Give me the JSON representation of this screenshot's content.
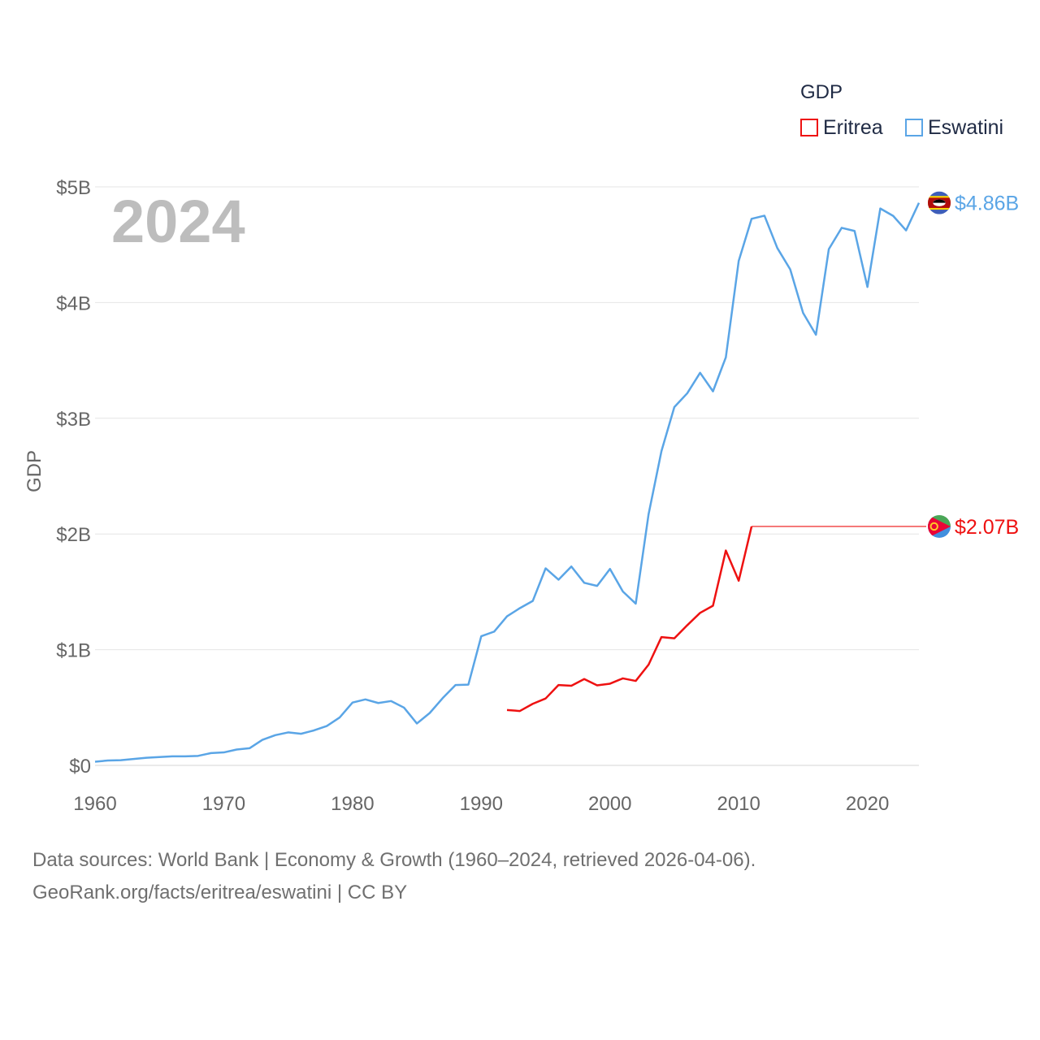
{
  "chart_data": {
    "type": "line",
    "title": "",
    "year_label": "2024",
    "xlabel": "",
    "ylabel": "GDP",
    "xlim": [
      1960,
      2024
    ],
    "ylim": [
      0,
      5
    ],
    "x_ticks": [
      1960,
      1970,
      1980,
      1990,
      2000,
      2010,
      2020
    ],
    "y_ticks": [
      {
        "value": 0,
        "label": "$0"
      },
      {
        "value": 1,
        "label": "$1B"
      },
      {
        "value": 2,
        "label": "$2B"
      },
      {
        "value": 3,
        "label": "$3B"
      },
      {
        "value": 4,
        "label": "$4B"
      },
      {
        "value": 5,
        "label": "$5B"
      }
    ],
    "legend": {
      "title": "GDP",
      "position": "top-right"
    },
    "series": [
      {
        "name": "Eritrea",
        "color": "#ee1111",
        "end_label": "$2.07B",
        "carry_forward_from": 2011,
        "points": [
          [
            1992,
            0.478
          ],
          [
            1993,
            0.47
          ],
          [
            1994,
            0.532
          ],
          [
            1995,
            0.578
          ],
          [
            1996,
            0.694
          ],
          [
            1997,
            0.688
          ],
          [
            1998,
            0.746
          ],
          [
            1999,
            0.692
          ],
          [
            2000,
            0.706
          ],
          [
            2001,
            0.752
          ],
          [
            2002,
            0.73
          ],
          [
            2003,
            0.871
          ],
          [
            2004,
            1.109
          ],
          [
            2005,
            1.098
          ],
          [
            2006,
            1.211
          ],
          [
            2007,
            1.318
          ],
          [
            2008,
            1.38
          ],
          [
            2009,
            1.857
          ],
          [
            2010,
            1.596
          ],
          [
            2011,
            2.065
          ],
          [
            2024,
            2.065
          ]
        ]
      },
      {
        "name": "Eswatini",
        "color": "#5aa5e6",
        "end_label": "$4.86B",
        "points": [
          [
            1960,
            0.032
          ],
          [
            1961,
            0.042
          ],
          [
            1962,
            0.045
          ],
          [
            1963,
            0.055
          ],
          [
            1964,
            0.066
          ],
          [
            1965,
            0.072
          ],
          [
            1966,
            0.078
          ],
          [
            1967,
            0.078
          ],
          [
            1968,
            0.082
          ],
          [
            1969,
            0.106
          ],
          [
            1970,
            0.112
          ],
          [
            1971,
            0.137
          ],
          [
            1972,
            0.148
          ],
          [
            1973,
            0.221
          ],
          [
            1974,
            0.261
          ],
          [
            1975,
            0.285
          ],
          [
            1976,
            0.273
          ],
          [
            1977,
            0.302
          ],
          [
            1978,
            0.34
          ],
          [
            1979,
            0.414
          ],
          [
            1980,
            0.543
          ],
          [
            1981,
            0.57
          ],
          [
            1982,
            0.539
          ],
          [
            1983,
            0.556
          ],
          [
            1984,
            0.499
          ],
          [
            1985,
            0.362
          ],
          [
            1986,
            0.453
          ],
          [
            1987,
            0.581
          ],
          [
            1988,
            0.694
          ],
          [
            1989,
            0.698
          ],
          [
            1990,
            1.116
          ],
          [
            1991,
            1.156
          ],
          [
            1992,
            1.288
          ],
          [
            1993,
            1.359
          ],
          [
            1994,
            1.421
          ],
          [
            1995,
            1.703
          ],
          [
            1996,
            1.605
          ],
          [
            1997,
            1.719
          ],
          [
            1998,
            1.578
          ],
          [
            1999,
            1.551
          ],
          [
            2000,
            1.698
          ],
          [
            2001,
            1.503
          ],
          [
            2002,
            1.398
          ],
          [
            2003,
            2.172
          ],
          [
            2004,
            2.717
          ],
          [
            2005,
            3.097
          ],
          [
            2006,
            3.216
          ],
          [
            2007,
            3.393
          ],
          [
            2008,
            3.233
          ],
          [
            2009,
            3.527
          ],
          [
            2010,
            4.36
          ],
          [
            2011,
            4.724
          ],
          [
            2012,
            4.751
          ],
          [
            2013,
            4.471
          ],
          [
            2014,
            4.287
          ],
          [
            2015,
            3.911
          ],
          [
            2016,
            3.722
          ],
          [
            2017,
            4.462
          ],
          [
            2018,
            4.646
          ],
          [
            2019,
            4.619
          ],
          [
            2020,
            4.135
          ],
          [
            2021,
            4.813
          ],
          [
            2022,
            4.749
          ],
          [
            2023,
            4.624
          ],
          [
            2024,
            4.862
          ]
        ]
      }
    ]
  },
  "footer": {
    "line1": "Data sources: World Bank | Economy & Growth (1960–2024, retrieved 2026-04-06).",
    "line2": "GeoRank.org/facts/eritrea/eswatini | CC BY"
  }
}
